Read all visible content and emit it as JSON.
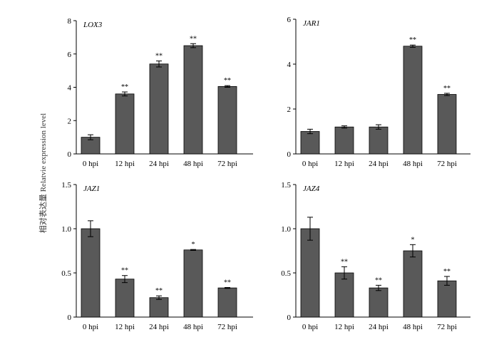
{
  "figure": {
    "ylabel": "相对表达量 Relatvie expression level"
  },
  "chart_data": [
    {
      "type": "bar",
      "gene": "LOX3",
      "categories": [
        "0 hpi",
        "12 hpi",
        "24 hpi",
        "48 hpi",
        "72 hpi"
      ],
      "values": [
        1.0,
        3.6,
        5.4,
        6.5,
        4.05
      ],
      "errors": [
        0.15,
        0.12,
        0.18,
        0.12,
        0.05
      ],
      "significance": [
        "",
        "**",
        "**",
        "**",
        "**"
      ],
      "ylim": [
        0,
        8
      ],
      "yticks": [
        0,
        2,
        4,
        6,
        8
      ],
      "ytick_labels": [
        "0",
        "2",
        "4",
        "6",
        "8"
      ],
      "bar_color": "#595959"
    },
    {
      "type": "bar",
      "gene": "JAR1",
      "categories": [
        "0 hpi",
        "12 hpi",
        "24 hpi",
        "48 hpi",
        "72 hpi"
      ],
      "values": [
        1.0,
        1.2,
        1.2,
        4.8,
        2.65
      ],
      "errors": [
        0.1,
        0.05,
        0.1,
        0.05,
        0.05
      ],
      "significance": [
        "",
        "",
        "",
        "**",
        "**"
      ],
      "ylim": [
        0,
        6
      ],
      "yticks": [
        0,
        2,
        4,
        6
      ],
      "ytick_labels": [
        "0",
        "2",
        "4",
        "6"
      ],
      "bar_color": "#595959"
    },
    {
      "type": "bar",
      "gene": "JAZ1",
      "categories": [
        "0 hpi",
        "12 hpi",
        "24 hpi",
        "48 hpi",
        "72 hpi"
      ],
      "values": [
        1.0,
        0.43,
        0.22,
        0.76,
        0.33
      ],
      "errors": [
        0.09,
        0.04,
        0.02,
        0.005,
        0.005
      ],
      "significance": [
        "",
        "**",
        "**",
        "*",
        "**"
      ],
      "ylim": [
        0,
        1.5
      ],
      "yticks": [
        0,
        0.5,
        1.0,
        1.5
      ],
      "ytick_labels": [
        "0",
        "0.5",
        "1.0",
        "1.5"
      ],
      "bar_color": "#595959"
    },
    {
      "type": "bar",
      "gene": "JAZ4",
      "categories": [
        "0 hpi",
        "12 hpi",
        "24 hpi",
        "48 hpi",
        "72 hpi"
      ],
      "values": [
        1.0,
        0.5,
        0.33,
        0.75,
        0.41
      ],
      "errors": [
        0.13,
        0.07,
        0.03,
        0.07,
        0.05
      ],
      "significance": [
        "",
        "**",
        "**",
        "*",
        "**"
      ],
      "ylim": [
        0,
        1.5
      ],
      "yticks": [
        0,
        0.5,
        1.0,
        1.5
      ],
      "ytick_labels": [
        "0",
        "0.5",
        "1.0",
        "1.5"
      ],
      "bar_color": "#595959"
    }
  ]
}
